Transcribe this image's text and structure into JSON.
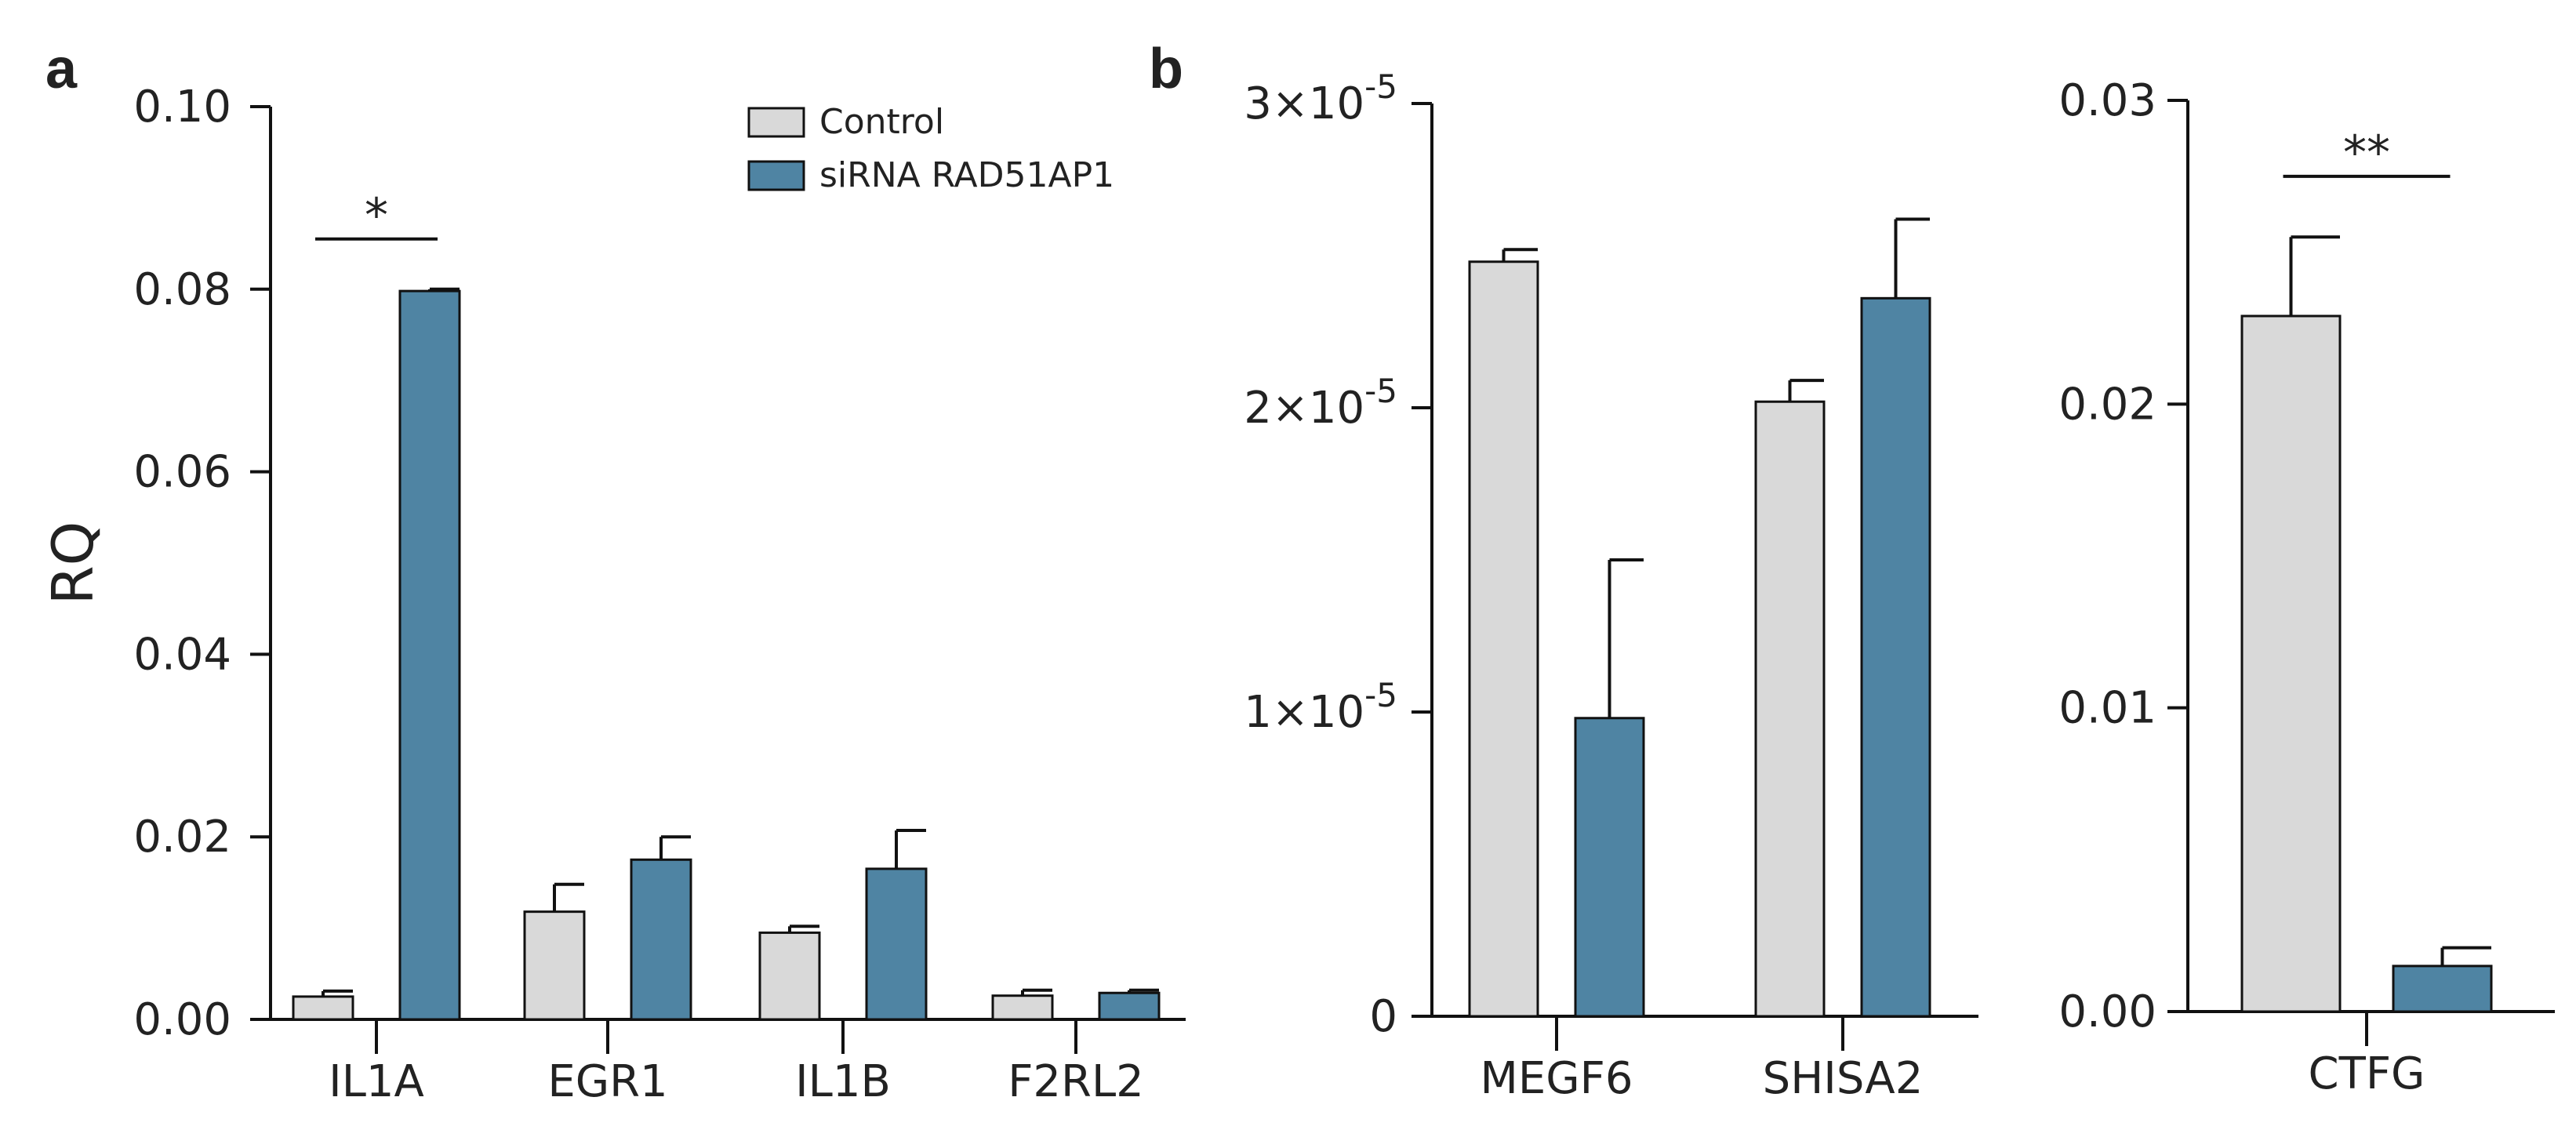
{
  "colors": {
    "control": "#d9d9d9",
    "sirna": "#4f84a3",
    "axis": "#111111",
    "error": "#111111"
  },
  "chart_data": [
    {
      "panel": "a",
      "type": "bar",
      "ylabel": "RQ",
      "ylim": [
        0,
        0.1
      ],
      "yticks": [
        0.0,
        0.02,
        0.04,
        0.06,
        0.08,
        0.1
      ],
      "ytick_labels": [
        "0.00",
        "0.02",
        "0.04",
        "0.06",
        "0.08",
        "0.10"
      ],
      "categories": [
        "IL1A",
        "EGR1",
        "IL1B",
        "F2RL2"
      ],
      "series": [
        {
          "name": "Control",
          "values": [
            0.0025,
            0.0118,
            0.0095,
            0.0026
          ],
          "errors": [
            0.0006,
            0.003,
            0.0007,
            0.0006
          ]
        },
        {
          "name": "siRNA RAD51AP1",
          "values": [
            0.0798,
            0.0175,
            0.0165,
            0.0029
          ],
          "errors": [
            0.0002,
            0.0025,
            0.0042,
            0.0003
          ]
        }
      ],
      "legend": {
        "position": "top-right",
        "entries": [
          "Control",
          "siRNA RAD51AP1"
        ]
      },
      "annotations": [
        {
          "category": "IL1A",
          "text": "*",
          "y": 0.0855
        }
      ]
    },
    {
      "panel": "b",
      "type": "bar",
      "ylim": [
        0,
        3e-05
      ],
      "yticks": [
        0,
        1e-05,
        2e-05,
        3e-05
      ],
      "ytick_labels": [
        {
          "base": "0",
          "exp": ""
        },
        {
          "base": "1×10",
          "exp": "-5"
        },
        {
          "base": "2×10",
          "exp": "-5"
        },
        {
          "base": "3×10",
          "exp": "-5"
        }
      ],
      "categories": [
        "MEGF6",
        "SHISA2"
      ],
      "series": [
        {
          "name": "Control",
          "values": [
            2.48e-05,
            2.02e-05
          ],
          "errors": [
            4e-07,
            7e-07
          ]
        },
        {
          "name": "siRNA RAD51AP1",
          "values": [
            9.8e-06,
            2.36e-05
          ],
          "errors": [
            5.2e-06,
            2.6e-06
          ]
        }
      ]
    },
    {
      "panel": "b-right",
      "type": "bar",
      "ylim": [
        0,
        0.03
      ],
      "yticks": [
        0.0,
        0.01,
        0.02,
        0.03
      ],
      "ytick_labels": [
        "0.00",
        "0.01",
        "0.02",
        "0.03"
      ],
      "categories": [
        "CTFG"
      ],
      "series": [
        {
          "name": "Control",
          "values": [
            0.0229
          ],
          "errors": [
            0.0026
          ]
        },
        {
          "name": "siRNA RAD51AP1",
          "values": [
            0.0015
          ],
          "errors": [
            0.0006
          ]
        }
      ],
      "annotations": [
        {
          "category": "CTFG",
          "text": "**",
          "y": 0.0275
        }
      ]
    }
  ]
}
